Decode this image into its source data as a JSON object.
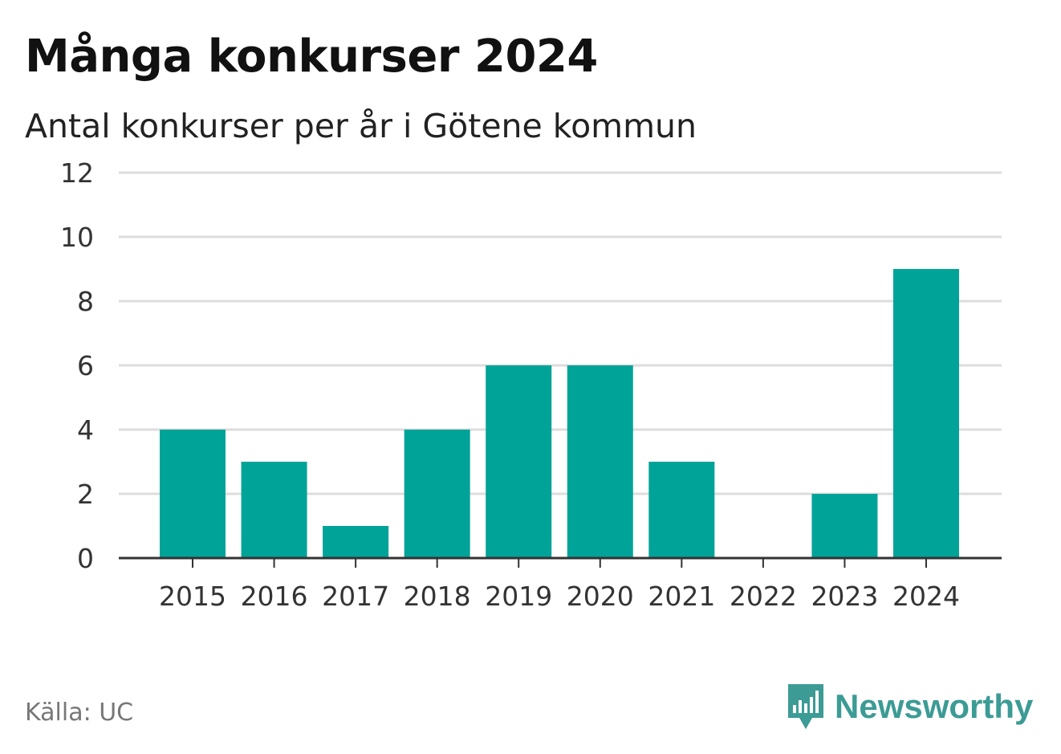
{
  "header": {
    "title": "Många konkurser 2024",
    "subtitle": "Antal konkurser per år i Götene kommun"
  },
  "footer": {
    "source": "Källa: UC",
    "brand": "Newsworthy",
    "brand_icon": "newsworthy-logo-icon"
  },
  "colors": {
    "bar": "#00a398",
    "grid": "#dddddd",
    "axis": "#333333",
    "brand": "#3c9b95"
  },
  "chart_data": {
    "type": "bar",
    "title": "Många konkurser 2024",
    "subtitle": "Antal konkurser per år i Götene kommun",
    "categories": [
      "2015",
      "2016",
      "2017",
      "2018",
      "2019",
      "2020",
      "2021",
      "2022",
      "2023",
      "2024"
    ],
    "values": [
      4,
      3,
      1,
      4,
      6,
      6,
      3,
      0,
      2,
      9
    ],
    "ylim": [
      0,
      12
    ],
    "yticks": [
      0,
      2,
      4,
      6,
      8,
      10,
      12
    ],
    "grid": true,
    "xlabel": "",
    "ylabel": ""
  }
}
